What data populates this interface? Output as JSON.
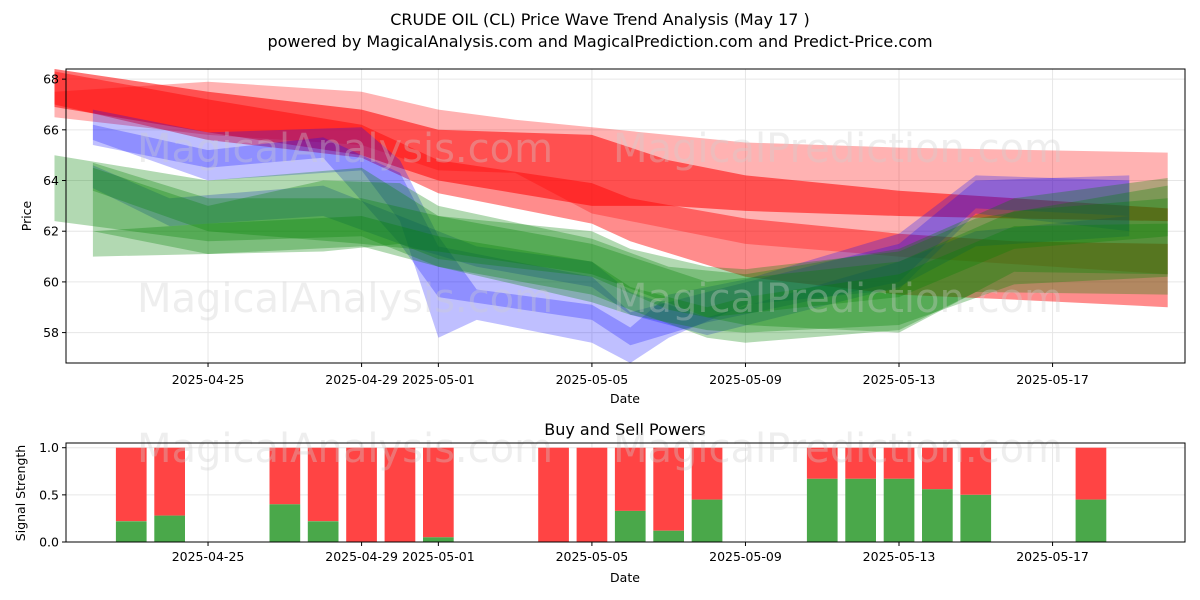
{
  "header": {
    "title": "CRUDE OIL (CL) Price Wave Trend Analysis (May 17 )",
    "subtitle": "powered by MagicalAnalysis.com and MagicalPrediction.com and Predict-Price.com"
  },
  "watermarks": [
    "MagicalAnalysis.com",
    "MagicalPrediction.com"
  ],
  "chart_data": [
    {
      "type": "area",
      "title": "",
      "xlabel": "Date",
      "ylabel": "Price",
      "xlim": [
        "2025-04-21",
        "2025-05-20"
      ],
      "ylim": [
        56.8,
        68.4
      ],
      "yticks": [
        58,
        60,
        62,
        64,
        66,
        68
      ],
      "xticks": [
        "2025-04-25",
        "2025-04-29",
        "2025-05-01",
        "2025-05-05",
        "2025-05-09",
        "2025-05-13",
        "2025-05-17"
      ],
      "grid": true,
      "colors": {
        "red": "#ff0000",
        "blue": "#0000ff",
        "green": "#008000"
      },
      "series": [
        {
          "color": "red",
          "opacity": 0.45,
          "x": [
            "2025-04-21",
            "2025-04-25",
            "2025-04-29",
            "2025-05-01",
            "2025-05-05",
            "2025-05-06",
            "2025-05-09",
            "2025-05-13",
            "2025-05-16",
            "2025-05-20"
          ],
          "upper": [
            68.3,
            67.2,
            66.2,
            64.8,
            63.9,
            63.3,
            62.5,
            61.9,
            61.6,
            61.5
          ],
          "lower": [
            67.0,
            65.6,
            64.9,
            63.5,
            62.3,
            61.6,
            60.2,
            59.5,
            59.3,
            59.0
          ]
        },
        {
          "color": "red",
          "opacity": 0.3,
          "x": [
            "2025-04-21",
            "2025-04-25",
            "2025-04-29",
            "2025-05-01",
            "2025-05-03",
            "2025-05-05",
            "2025-05-09",
            "2025-05-13",
            "2025-05-20"
          ],
          "upper": [
            67.5,
            67.9,
            67.5,
            66.8,
            66.4,
            66.1,
            65.5,
            65.3,
            65.1
          ],
          "lower": [
            66.5,
            65.8,
            65.4,
            64.4,
            64.3,
            62.7,
            61.5,
            61.0,
            60.3
          ]
        },
        {
          "color": "red",
          "opacity": 0.55,
          "x": [
            "2025-04-21",
            "2025-04-25",
            "2025-04-29",
            "2025-05-01",
            "2025-05-05",
            "2025-05-07",
            "2025-05-09",
            "2025-05-13",
            "2025-05-16",
            "2025-05-20"
          ],
          "upper": [
            68.4,
            67.5,
            66.8,
            66.0,
            65.8,
            64.8,
            64.2,
            63.6,
            63.3,
            62.9
          ],
          "lower": [
            66.9,
            65.9,
            65.0,
            64.0,
            63.0,
            63.0,
            62.8,
            62.6,
            62.5,
            62.4
          ]
        },
        {
          "color": "blue",
          "opacity": 0.25,
          "x": [
            "2025-04-22",
            "2025-04-25",
            "2025-04-29",
            "2025-04-30",
            "2025-05-01",
            "2025-05-02",
            "2025-05-05",
            "2025-05-06",
            "2025-05-07",
            "2025-05-09",
            "2025-05-13",
            "2025-05-15",
            "2025-05-19"
          ],
          "upper": [
            66.8,
            65.9,
            66.1,
            64.8,
            61.8,
            59.7,
            59.1,
            58.2,
            59.5,
            60.1,
            61.9,
            64.2,
            64.0
          ],
          "lower": [
            65.6,
            64.0,
            64.4,
            62.4,
            57.8,
            58.5,
            57.6,
            56.8,
            57.8,
            59.1,
            59.7,
            62.7,
            62.0
          ]
        },
        {
          "color": "blue",
          "opacity": 0.25,
          "x": [
            "2025-04-22",
            "2025-04-25",
            "2025-04-28",
            "2025-04-30",
            "2025-05-01",
            "2025-05-05",
            "2025-05-06",
            "2025-05-08",
            "2025-05-13",
            "2025-05-15",
            "2025-05-19"
          ],
          "upper": [
            66.2,
            65.2,
            65.7,
            64.3,
            61.4,
            60.2,
            58.8,
            59.6,
            61.5,
            64.0,
            64.2
          ],
          "lower": [
            65.4,
            64.5,
            64.9,
            61.5,
            59.4,
            58.5,
            57.5,
            58.4,
            60.0,
            62.9,
            62.6
          ]
        },
        {
          "color": "blue",
          "opacity": 0.25,
          "x": [
            "2025-04-22",
            "2025-04-24",
            "2025-04-28",
            "2025-04-30",
            "2025-05-02",
            "2025-05-05",
            "2025-05-06",
            "2025-05-08",
            "2025-05-13",
            "2025-05-15",
            "2025-05-19"
          ],
          "upper": [
            64.6,
            63.3,
            63.8,
            62.6,
            61.4,
            60.8,
            59.6,
            58.6,
            60.8,
            62.0,
            62.6
          ],
          "lower": [
            63.7,
            62.2,
            62.6,
            61.5,
            60.6,
            59.8,
            58.7,
            57.9,
            59.8,
            61.4,
            61.8
          ]
        },
        {
          "color": "green",
          "opacity": 0.3,
          "x": [
            "2025-04-21",
            "2025-04-25",
            "2025-04-29",
            "2025-05-01",
            "2025-05-05",
            "2025-05-06",
            "2025-05-08",
            "2025-05-09",
            "2025-05-13",
            "2025-05-15",
            "2025-05-20"
          ],
          "upper": [
            65.0,
            64.0,
            64.5,
            62.6,
            62.0,
            61.3,
            60.6,
            60.5,
            61.2,
            62.5,
            63.8
          ],
          "lower": [
            62.4,
            61.6,
            61.8,
            60.6,
            59.5,
            58.9,
            57.8,
            57.6,
            58.1,
            59.6,
            59.5
          ]
        },
        {
          "color": "green",
          "opacity": 0.3,
          "x": [
            "2025-04-22",
            "2025-04-25",
            "2025-04-28",
            "2025-04-30",
            "2025-05-01",
            "2025-05-05",
            "2025-05-07",
            "2025-05-09",
            "2025-05-13",
            "2025-05-16",
            "2025-05-20"
          ],
          "upper": [
            64.5,
            63.0,
            64.0,
            63.9,
            63.0,
            61.7,
            60.6,
            60.3,
            61.3,
            63.3,
            64.1
          ],
          "lower": [
            62.0,
            61.1,
            61.2,
            61.5,
            60.9,
            60.2,
            58.9,
            58.3,
            58.0,
            60.4,
            60.3
          ]
        },
        {
          "color": "green",
          "opacity": 0.3,
          "x": [
            "2025-04-22",
            "2025-04-25",
            "2025-04-29",
            "2025-05-01",
            "2025-05-05",
            "2025-05-06",
            "2025-05-08",
            "2025-05-09",
            "2025-05-13",
            "2025-05-16",
            "2025-05-20"
          ],
          "upper": [
            62.0,
            62.3,
            62.6,
            61.8,
            60.8,
            59.8,
            59.0,
            59.4,
            60.3,
            62.2,
            62.3
          ],
          "lower": [
            61.0,
            61.1,
            61.4,
            60.6,
            59.2,
            58.7,
            58.1,
            58.0,
            58.3,
            59.9,
            60.2
          ]
        },
        {
          "color": "green",
          "opacity": 0.3,
          "x": [
            "2025-04-22",
            "2025-04-25",
            "2025-04-29",
            "2025-05-01",
            "2025-05-05",
            "2025-05-08",
            "2025-05-13",
            "2025-05-16",
            "2025-05-20"
          ],
          "upper": [
            64.7,
            63.3,
            63.3,
            62.6,
            61.5,
            60.0,
            60.8,
            62.8,
            63.3
          ],
          "lower": [
            63.6,
            62.0,
            61.5,
            61.2,
            60.3,
            58.6,
            59.4,
            61.3,
            61.8
          ]
        }
      ]
    },
    {
      "type": "bar",
      "title": "Buy and Sell Powers",
      "xlabel": "Date",
      "ylabel": "Signal Strength",
      "xlim": [
        "2025-04-21",
        "2025-05-20"
      ],
      "ylim": [
        0,
        1.05
      ],
      "yticks": [
        "0.0",
        "0.5",
        "1.0"
      ],
      "xticks": [
        "2025-04-25",
        "2025-04-29",
        "2025-05-01",
        "2025-05-05",
        "2025-05-09",
        "2025-05-13",
        "2025-05-17"
      ],
      "grid": true,
      "colors": {
        "buy": "#4aa84a",
        "sell": "#ff4444"
      },
      "bars": [
        {
          "date": "2025-04-23",
          "buy": 0.22
        },
        {
          "date": "2025-04-24",
          "buy": 0.28
        },
        {
          "date": "2025-04-27",
          "buy": 0.4
        },
        {
          "date": "2025-04-28",
          "buy": 0.22
        },
        {
          "date": "2025-04-29",
          "buy": 0.0
        },
        {
          "date": "2025-04-30",
          "buy": 0.0
        },
        {
          "date": "2025-05-01",
          "buy": 0.05
        },
        {
          "date": "2025-05-04",
          "buy": 0.0
        },
        {
          "date": "2025-05-05",
          "buy": 0.0
        },
        {
          "date": "2025-05-06",
          "buy": 0.33
        },
        {
          "date": "2025-05-07",
          "buy": 0.12
        },
        {
          "date": "2025-05-08",
          "buy": 0.45
        },
        {
          "date": "2025-05-11",
          "buy": 0.67
        },
        {
          "date": "2025-05-12",
          "buy": 0.67
        },
        {
          "date": "2025-05-13",
          "buy": 0.67
        },
        {
          "date": "2025-05-14",
          "buy": 0.56
        },
        {
          "date": "2025-05-15",
          "buy": 0.5
        },
        {
          "date": "2025-05-18",
          "buy": 0.45
        }
      ]
    }
  ]
}
